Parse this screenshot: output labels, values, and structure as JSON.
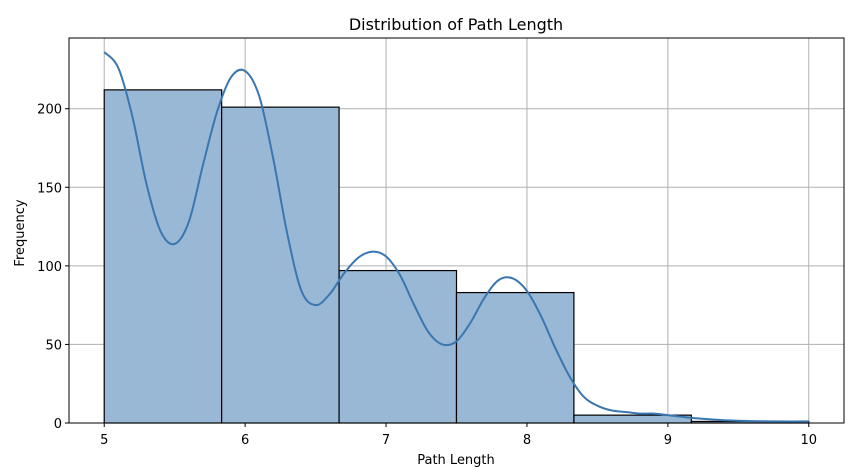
{
  "chart_data": {
    "type": "bar",
    "title": "Distribution of Path Length",
    "xlabel": "Path Length",
    "ylabel": "Frequency",
    "xlim": [
      4.75,
      10.25
    ],
    "ylim": [
      0,
      245
    ],
    "x_ticks": [
      5,
      6,
      7,
      8,
      9,
      10
    ],
    "y_ticks": [
      0,
      50,
      100,
      150,
      200
    ],
    "grid": true,
    "bins": [
      {
        "start": 5.0,
        "end": 5.8333,
        "count": 212
      },
      {
        "start": 5.8333,
        "end": 6.6667,
        "count": 201
      },
      {
        "start": 6.6667,
        "end": 7.5,
        "count": 97
      },
      {
        "start": 7.5,
        "end": 8.3333,
        "count": 83
      },
      {
        "start": 8.3333,
        "end": 9.1667,
        "count": 5
      },
      {
        "start": 9.1667,
        "end": 10.0,
        "count": 1
      }
    ],
    "kde": {
      "x": [
        5.0,
        5.1,
        5.2,
        5.3,
        5.4,
        5.5,
        5.6,
        5.7,
        5.8,
        5.9,
        6.0,
        6.1,
        6.2,
        6.3,
        6.4,
        6.5,
        6.6,
        6.7,
        6.8,
        6.9,
        7.0,
        7.1,
        7.2,
        7.3,
        7.4,
        7.5,
        7.6,
        7.7,
        7.8,
        7.9,
        8.0,
        8.1,
        8.2,
        8.3,
        8.4,
        8.5,
        8.6,
        8.7,
        8.8,
        8.9,
        9.0,
        9.2,
        9.4,
        9.6,
        9.8,
        10.0
      ],
      "y": [
        236,
        226,
        195,
        152,
        122,
        114,
        128,
        164,
        198,
        220,
        224,
        208,
        168,
        120,
        84,
        75,
        82,
        95,
        105,
        109,
        106,
        94,
        75,
        58,
        50,
        52,
        64,
        80,
        91,
        92,
        84,
        68,
        48,
        30,
        17,
        11,
        8,
        7,
        6,
        6,
        5,
        3,
        1.8,
        1.2,
        1.0,
        1.0
      ]
    },
    "colors": {
      "bar_fill": "#99b8d6",
      "bar_edge": "#000000",
      "kde_line": "#3a76af",
      "grid": "#b0b0b0"
    }
  }
}
